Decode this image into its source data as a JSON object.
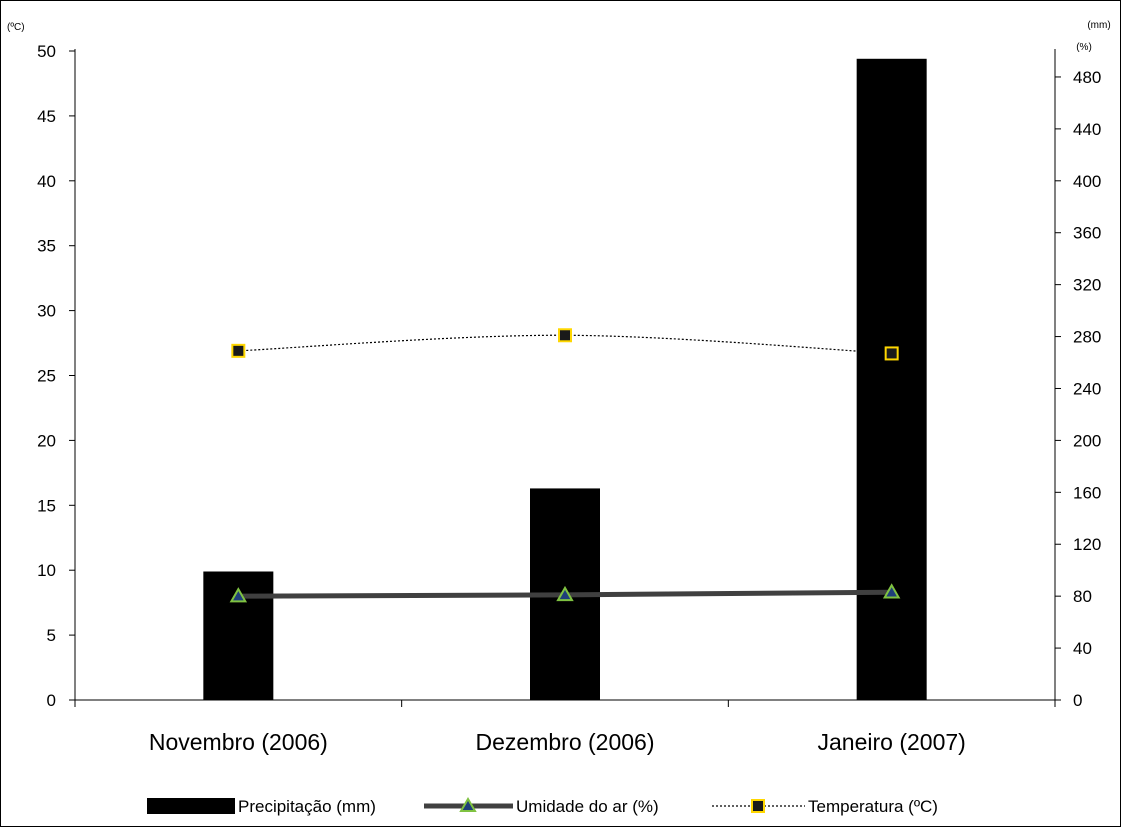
{
  "chart_data": {
    "type": "bar",
    "title": "",
    "xlabel": "",
    "categories": [
      "Novembro (2006)",
      "Dezembro (2006)",
      "Janeiro (2007)"
    ],
    "left_axis": {
      "unit_label": "(ºC)",
      "ylim": [
        0,
        50
      ],
      "ticks": [
        "0",
        "5",
        "10",
        "15",
        "20",
        "25",
        "30",
        "35",
        "40",
        "45",
        "50"
      ]
    },
    "right_axis": {
      "unit_labels": [
        "(mm)",
        "(%)"
      ],
      "ylim": [
        0,
        500
      ],
      "ticks": [
        "0",
        "40",
        "80",
        "120",
        "160",
        "200",
        "240",
        "280",
        "320",
        "360",
        "400",
        "440",
        "480"
      ]
    },
    "series": [
      {
        "name": "Precipitação (mm)",
        "kind": "bar",
        "axis": "right",
        "color": "#000000",
        "values": [
          99,
          163,
          494
        ]
      },
      {
        "name": "Umidade do ar (%)",
        "kind": "line",
        "axis": "right",
        "color": "#404040",
        "marker": "triangle",
        "marker_color": "#7fc241",
        "values": [
          80,
          81,
          83
        ]
      },
      {
        "name": "Temperatura (ºC)",
        "kind": "line",
        "axis": "left",
        "color": "#000000",
        "dash": "dotted",
        "marker": "square",
        "marker_color": "#ffd700",
        "values": [
          26.9,
          28.1,
          26.7
        ]
      }
    ],
    "grid": false,
    "legend_position": "bottom"
  }
}
